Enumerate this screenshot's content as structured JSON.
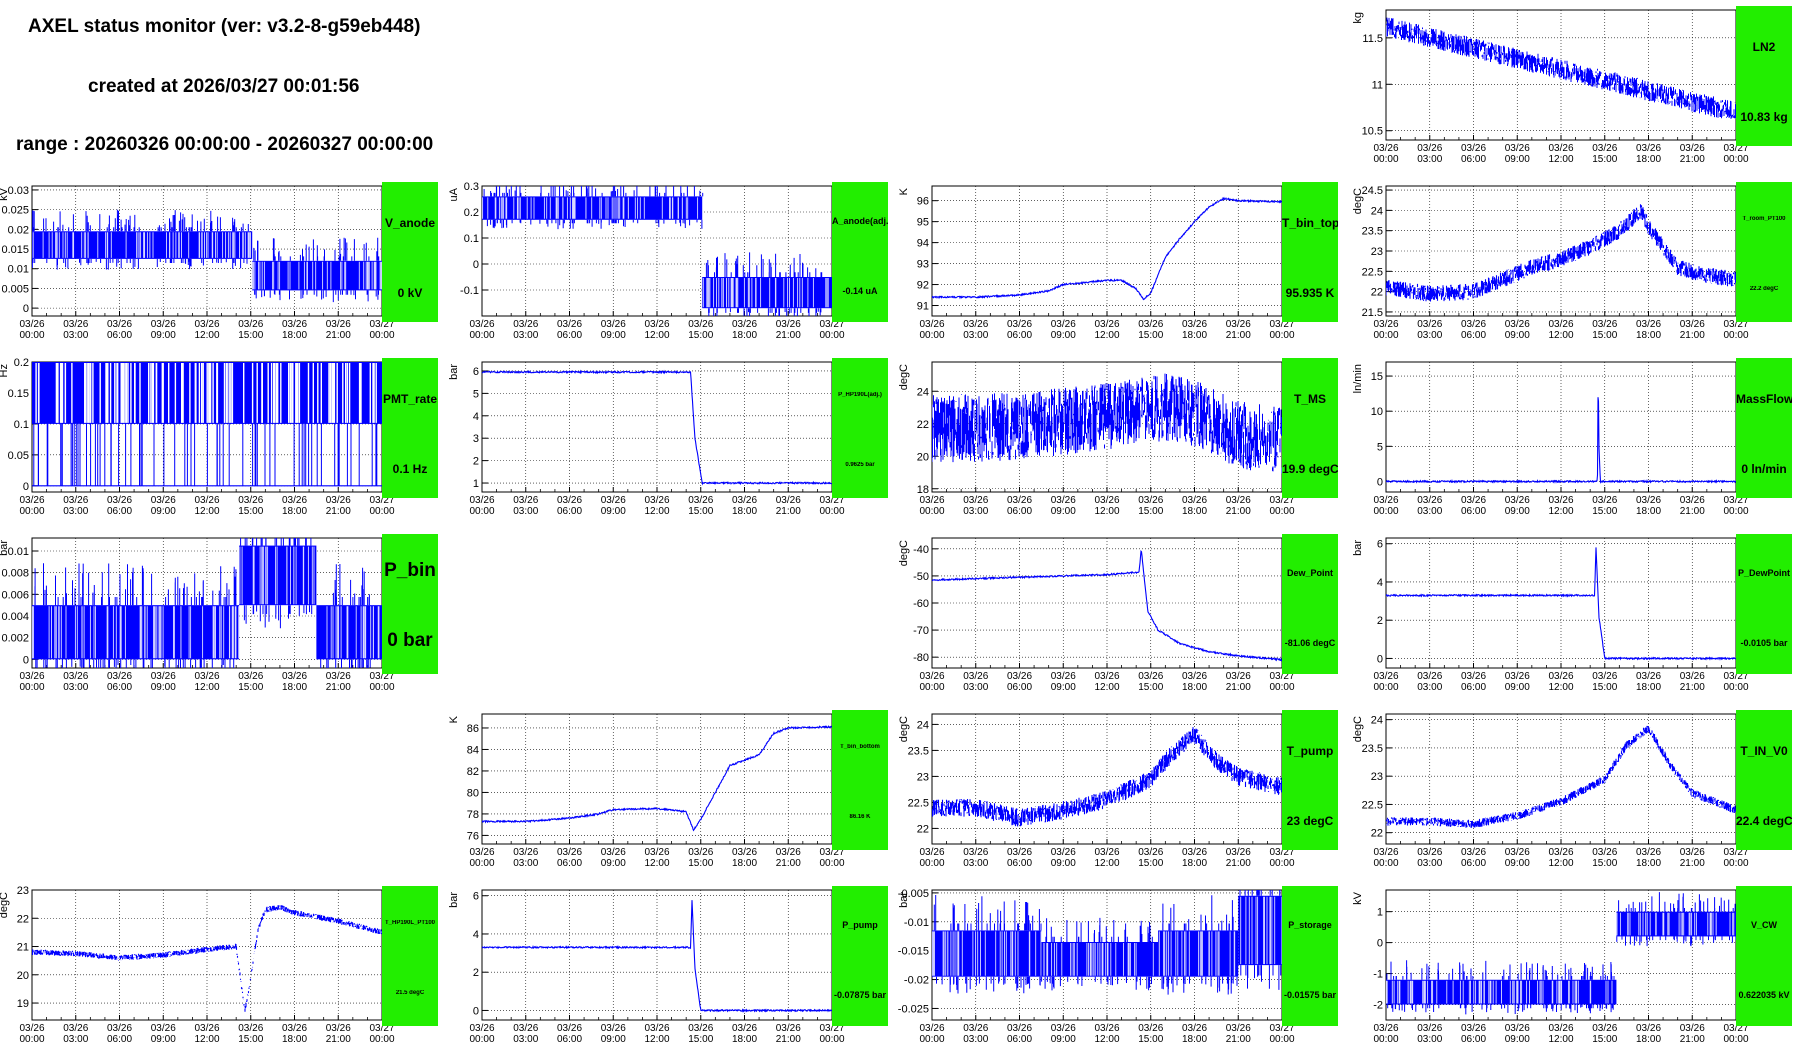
{
  "header": {
    "title": "AXEL status monitor (ver: v3.2-8-g59eb448)",
    "created": "created at 2026/03/27 00:01:56",
    "range": "range : 20260326 00:00:00 - 20260327 00:00:00"
  },
  "x_axis": {
    "ticks": [
      "03/26\n00:00",
      "03/26\n03:00",
      "03/26\n06:00",
      "03/26\n09:00",
      "03/26\n12:00",
      "03/26\n15:00",
      "03/26\n18:00",
      "03/26\n21:00",
      "03/27\n00:00"
    ]
  },
  "colors": {
    "trace": "#0000ff",
    "status_bg": "#22ee00",
    "grid": "#000000"
  },
  "panels": [
    {
      "id": "ln2",
      "name": "LN2",
      "value": "10.83 kg",
      "ylabel": "kg",
      "chart_data": {
        "type": "line",
        "ylim": [
          10.4,
          11.8
        ],
        "yticks": [
          10.5,
          11,
          11.5
        ],
        "series": [
          {
            "x": [
              0,
              24
            ],
            "y_center": [
              11.62,
              10.7
            ],
            "band": 0.22
          }
        ]
      }
    },
    {
      "id": "v_anode",
      "name": "V_anode",
      "value": "0 kV",
      "ylabel": "kV",
      "chart_data": {
        "type": "line",
        "ylim": [
          -0.002,
          0.031
        ],
        "yticks": [
          0,
          0.005,
          0.01,
          0.015,
          0.02,
          0.025,
          0.03
        ],
        "series": [
          {
            "segments": [
              {
                "x": [
                  0,
                  15.1
                ],
                "low": 0.0125,
                "high": 0.0195
              },
              {
                "x": [
                  15.1,
                  24
                ],
                "low": 0.0045,
                "high": 0.012
              }
            ]
          }
        ]
      }
    },
    {
      "id": "a_anode",
      "name": "A_anode(adj.)",
      "value": "-0.14 uA",
      "ylabel": "uA",
      "chart_data": {
        "type": "line",
        "ylim": [
          -0.2,
          0.3
        ],
        "yticks": [
          -0.1,
          0,
          0.1,
          0.2,
          0.3
        ],
        "series": [
          {
            "segments": [
              {
                "x": [
                  0,
                  15.1
                ],
                "low": 0.17,
                "high": 0.26
              },
              {
                "x": [
                  15.1,
                  24
                ],
                "low": -0.17,
                "high": -0.05
              }
            ]
          }
        ]
      }
    },
    {
      "id": "t_bin_top",
      "name": "T_bin_top",
      "value": "95.935 K",
      "ylabel": "K",
      "chart_data": {
        "type": "line",
        "ylim": [
          90.5,
          96.7
        ],
        "yticks": [
          91,
          92,
          93,
          94,
          95,
          96
        ],
        "series": [
          {
            "x": [
              0,
              3,
              6,
              8,
              9,
              12,
              13,
              14,
              14.5,
              15,
              16,
              17,
              18,
              19,
              20,
              21,
              24
            ],
            "y": [
              91.4,
              91.4,
              91.5,
              91.7,
              92,
              92.2,
              92.2,
              91.8,
              91.3,
              91.6,
              93.3,
              94.2,
              95,
              95.7,
              96.1,
              96.0,
              95.95
            ]
          }
        ]
      }
    },
    {
      "id": "t_room_pt100",
      "name": "T_room_PT100",
      "value": "22.2 degC",
      "ylabel": "degC",
      "chart_data": {
        "type": "line",
        "ylim": [
          21.4,
          24.6
        ],
        "yticks": [
          21.5,
          22,
          22.5,
          23,
          23.5,
          24,
          24.5
        ],
        "series": [
          {
            "x": [
              0,
              3,
              6,
              8,
              10,
              12,
              14,
              16,
              17.5,
              18,
              19,
              20,
              22,
              24
            ],
            "y": [
              22.1,
              21.95,
              22.0,
              22.3,
              22.6,
              22.8,
              23.1,
              23.5,
              24.0,
              23.6,
              23.1,
              22.6,
              22.4,
              22.3
            ],
            "band": 0.4
          }
        ]
      }
    },
    {
      "id": "pmt_rate",
      "name": "PMT_rate",
      "value": "0.1 Hz",
      "ylabel": "Hz",
      "chart_data": {
        "type": "line",
        "ylim": [
          -0.01,
          0.2
        ],
        "yticks": [
          0,
          0.05,
          0.1,
          0.15,
          0.2
        ],
        "series": [
          {
            "x": [
              0,
              24
            ],
            "low": 0.1,
            "high": 0.2
          }
        ]
      }
    },
    {
      "id": "p_hp190l",
      "name": "P_HP190L(adj.)",
      "value": "0.9625 bar",
      "ylabel": "bar",
      "chart_data": {
        "type": "line",
        "ylim": [
          0.6,
          6.4
        ],
        "yticks": [
          1,
          2,
          3,
          4,
          5,
          6
        ],
        "series": [
          {
            "x": [
              0,
              14.3,
              14.6,
              15.1,
              24
            ],
            "y": [
              5.95,
              5.95,
              3.0,
              1.0,
              1.0
            ]
          }
        ]
      }
    },
    {
      "id": "t_ms",
      "name": "T_MS",
      "value": "19.9 degC",
      "ylabel": "degC",
      "chart_data": {
        "type": "line",
        "ylim": [
          17.8,
          25.8
        ],
        "yticks": [
          18,
          20,
          22,
          24
        ],
        "series": [
          {
            "x": [
              0,
              6,
              12,
              16,
              18,
              21,
              24
            ],
            "y_center": [
              21.7,
              21.8,
              22.5,
              23.0,
              22.6,
              21.3,
              20.9
            ],
            "band": 4.2
          }
        ]
      }
    },
    {
      "id": "massflow",
      "name": "MassFlow",
      "value": "0 ln/min",
      "ylabel": "ln/min",
      "chart_data": {
        "type": "line",
        "ylim": [
          -1.5,
          17
        ],
        "yticks": [
          0,
          5,
          10,
          15
        ],
        "series": [
          {
            "x": [
              0,
              14.5,
              14.55,
              14.6,
              14.7,
              24
            ],
            "y": [
              0,
              0,
              16,
              5,
              0,
              0
            ]
          }
        ]
      }
    },
    {
      "id": "p_bin",
      "name": "P_bin",
      "value": "0 bar",
      "ylabel": "bar",
      "chart_data": {
        "type": "line",
        "ylim": [
          -0.0008,
          0.0112
        ],
        "yticks": [
          0,
          0.002,
          0.004,
          0.006,
          0.008,
          0.01
        ],
        "series": [
          {
            "segments": [
              {
                "x": [
                  0,
                  14.2
                ],
                "low": 0,
                "high": 0.005
              },
              {
                "x": [
                  14.2,
                  19.5
                ],
                "low": 0.005,
                "high": 0.0105
              },
              {
                "x": [
                  19.5,
                  24
                ],
                "low": 0,
                "high": 0.005
              }
            ]
          }
        ]
      }
    },
    {
      "id": "dew_point",
      "name": "Dew_Point",
      "value": "-81.06 degC",
      "ylabel": "degC",
      "chart_data": {
        "type": "line",
        "ylim": [
          -84,
          -36
        ],
        "yticks": [
          -80,
          -70,
          -60,
          -50,
          -40
        ],
        "series": [
          {
            "x": [
              0,
              6,
              12,
              14.2,
              14.35,
              14.5,
              14.8,
              15.5,
              17,
              19,
              21,
              24
            ],
            "y": [
              -51.5,
              -50.5,
              -49.5,
              -48.6,
              -40,
              -48,
              -63,
              -70,
              -75,
              -78,
              -79.5,
              -81
            ]
          }
        ]
      }
    },
    {
      "id": "p_dewpoint",
      "name": "P_DewPoint",
      "value": "-0.0105 bar",
      "ylabel": "bar",
      "chart_data": {
        "type": "line",
        "ylim": [
          -0.5,
          6.3
        ],
        "yticks": [
          0,
          2,
          4,
          6
        ],
        "series": [
          {
            "x": [
              0,
              14.3,
              14.4,
              14.6,
              15,
              24
            ],
            "y": [
              3.3,
              3.3,
              5.8,
              2.2,
              0,
              0
            ]
          }
        ]
      }
    },
    {
      "id": "t_bin_bottom",
      "name": "T_bin_bottom",
      "value": "86.16 K",
      "ylabel": "K",
      "chart_data": {
        "type": "line",
        "ylim": [
          75.2,
          87.3
        ],
        "yticks": [
          76,
          78,
          80,
          82,
          84,
          86
        ],
        "series": [
          {
            "x": [
              0,
              3,
              6,
              8,
              9,
              12,
              14,
              14.5,
              15,
              16,
              17,
              19,
              20,
              21,
              24
            ],
            "y": [
              77.3,
              77.3,
              77.6,
              78.0,
              78.4,
              78.5,
              78.2,
              76.5,
              77.5,
              80,
              82.5,
              83.5,
              85.5,
              86.0,
              86.1
            ]
          }
        ]
      }
    },
    {
      "id": "t_pump",
      "name": "T_pump",
      "value": "23 degC",
      "ylabel": "degC",
      "chart_data": {
        "type": "line",
        "ylim": [
          21.7,
          24.2
        ],
        "yticks": [
          22,
          22.5,
          23,
          23.5,
          24
        ],
        "series": [
          {
            "x": [
              0,
              3,
              6,
              9,
              12,
              15,
              16.5,
              18,
              19.5,
              21,
              24
            ],
            "y": [
              22.4,
              22.4,
              22.2,
              22.35,
              22.55,
              22.95,
              23.45,
              23.8,
              23.3,
              23.0,
              22.8
            ],
            "band": 0.35
          }
        ]
      }
    },
    {
      "id": "t_in_v0",
      "name": "T_IN_V0",
      "value": "22.4 degC",
      "ylabel": "degC",
      "chart_data": {
        "type": "line",
        "ylim": [
          21.8,
          24.1
        ],
        "yticks": [
          22,
          22.5,
          23,
          23.5,
          24
        ],
        "series": [
          {
            "x": [
              0,
              3,
              6,
              9,
              12,
              15,
              16.5,
              18,
              19.5,
              21,
              24
            ],
            "y": [
              22.2,
              22.2,
              22.15,
              22.3,
              22.55,
              22.95,
              23.55,
              23.85,
              23.2,
              22.7,
              22.4
            ],
            "band": 0.15
          }
        ]
      }
    },
    {
      "id": "t_hp190l_pt100",
      "name": "T_HP190L_PT100",
      "value": "21.5 degC",
      "ylabel": "degC",
      "chart_data": {
        "type": "line",
        "ylim": [
          18.4,
          23
        ],
        "yticks": [
          19,
          20,
          21,
          22,
          23
        ],
        "series": [
          {
            "x": [
              0,
              3,
              6,
              9,
              12,
              14,
              14.6,
              15,
              15.5,
              16,
              17,
              18,
              21,
              24
            ],
            "y": [
              20.8,
              20.75,
              20.6,
              20.7,
              20.9,
              21.0,
              18.7,
              19.9,
              21.6,
              22.3,
              22.4,
              22.2,
              21.9,
              21.5
            ],
            "band": 0.2
          }
        ]
      }
    },
    {
      "id": "p_pump",
      "name": "P_pump",
      "value": "-0.07875 bar",
      "ylabel": "bar",
      "chart_data": {
        "type": "line",
        "ylim": [
          -0.5,
          6.3
        ],
        "yticks": [
          0,
          2,
          4,
          6
        ],
        "series": [
          {
            "x": [
              0,
              14.3,
              14.4,
              14.6,
              15,
              24
            ],
            "y": [
              3.3,
              3.3,
              5.8,
              2.2,
              0,
              0
            ]
          }
        ]
      }
    },
    {
      "id": "p_storage",
      "name": "P_storage",
      "value": "-0.01575 bar",
      "ylabel": "bar",
      "chart_data": {
        "type": "line",
        "ylim": [
          -0.027,
          -0.0045
        ],
        "yticks": [
          -0.025,
          -0.02,
          -0.015,
          -0.01,
          -0.005
        ],
        "series": [
          {
            "segments": [
              {
                "x": [
                  0,
                  7.5
                ],
                "low": -0.0195,
                "high": -0.0115
              },
              {
                "x": [
                  7.5,
                  15.5
                ],
                "low": -0.0195,
                "high": -0.0135
              },
              {
                "x": [
                  15.5,
                  21
                ],
                "low": -0.0195,
                "high": -0.0115
              },
              {
                "x": [
                  21,
                  24
                ],
                "low": -0.0175,
                "high": -0.0055
              }
            ]
          }
        ]
      }
    },
    {
      "id": "v_cw",
      "name": "V_CW",
      "value": "0.622035 kV",
      "ylabel": "kV",
      "chart_data": {
        "type": "line",
        "ylim": [
          -2.5,
          1.7
        ],
        "yticks": [
          -2,
          -1,
          0,
          1
        ],
        "series": [
          {
            "segments": [
              {
                "x": [
                  0,
                  15.8
                ],
                "low": -2.0,
                "high": -1.2
              },
              {
                "x": [
                  15.8,
                  24
                ],
                "low": 0.2,
                "high": 1.0
              }
            ]
          }
        ]
      }
    }
  ]
}
